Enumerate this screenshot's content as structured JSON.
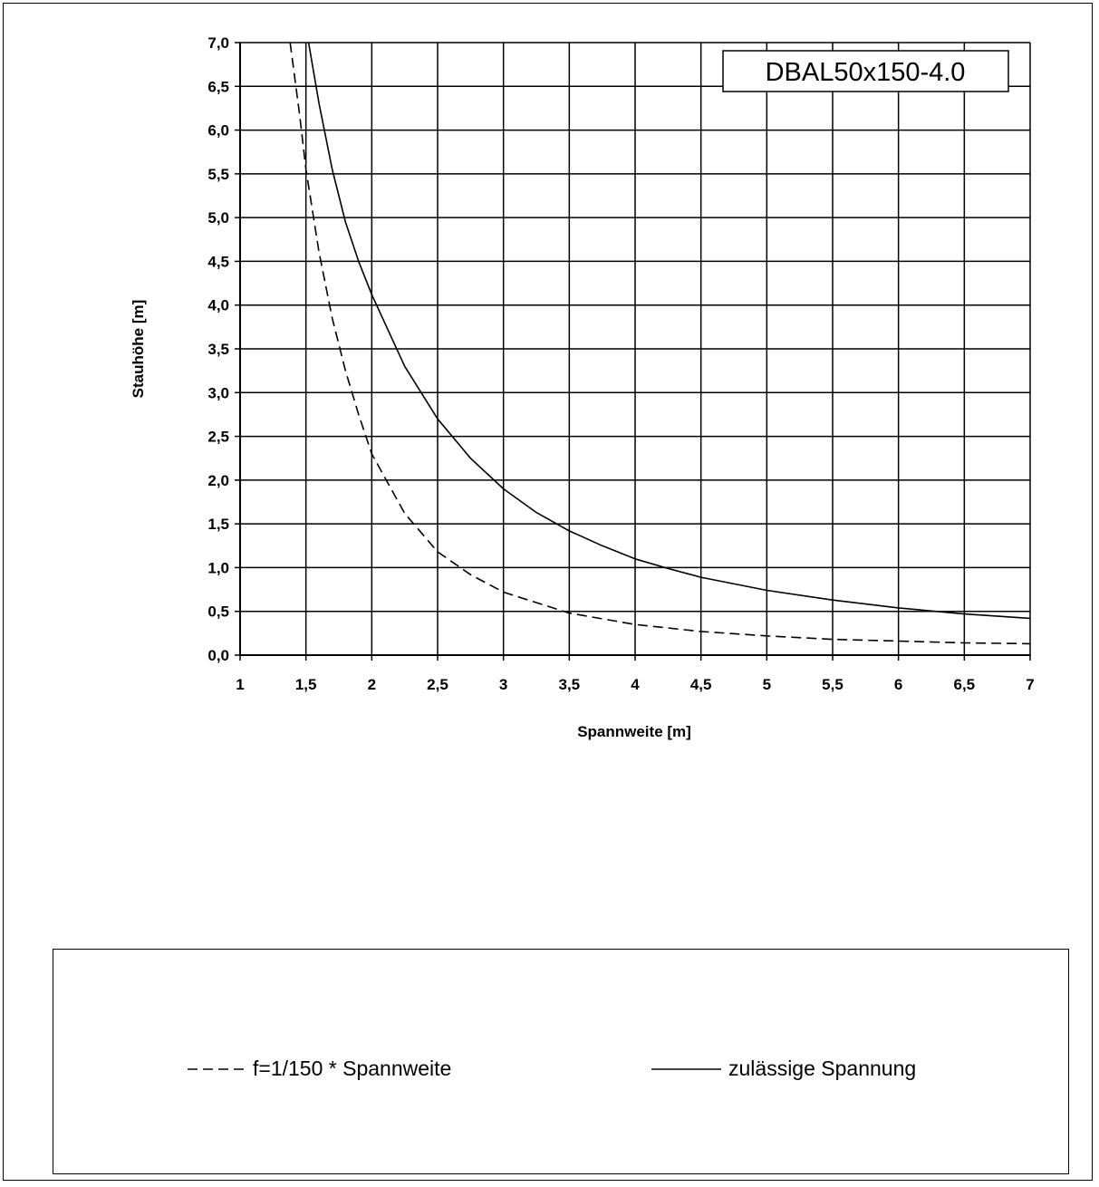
{
  "chart_data": {
    "type": "line",
    "title": "DBAL50x150-4.0",
    "xlabel": "Spannweite [m]",
    "ylabel": "Stauhöhe [m]",
    "xlim": [
      1,
      7
    ],
    "ylim": [
      0,
      7
    ],
    "x_ticks": [
      "1",
      "1,5",
      "2",
      "2,5",
      "3",
      "3,5",
      "4",
      "4,5",
      "5",
      "5,5",
      "6",
      "6,5",
      "7"
    ],
    "y_ticks": [
      "0,0",
      "0,5",
      "1,0",
      "1,5",
      "2,0",
      "2,5",
      "3,0",
      "3,5",
      "4,0",
      "4,5",
      "5,0",
      "5,5",
      "6,0",
      "6,5",
      "7,0"
    ],
    "grid": true,
    "legend_position": "bottom",
    "series": [
      {
        "name": "f=1/150 * Spannweite",
        "style": "dashed",
        "color": "#000000",
        "x": [
          1.38,
          1.45,
          1.5,
          1.6,
          1.7,
          1.8,
          1.9,
          2.0,
          2.25,
          2.5,
          2.75,
          3.0,
          3.5,
          4.0,
          4.5,
          5.0,
          5.5,
          6.0,
          6.5,
          7.0
        ],
        "y": [
          7.0,
          6.2,
          5.55,
          4.6,
          3.85,
          3.25,
          2.75,
          2.3,
          1.62,
          1.18,
          0.92,
          0.72,
          0.48,
          0.35,
          0.27,
          0.22,
          0.18,
          0.16,
          0.14,
          0.13
        ]
      },
      {
        "name": "zulässige Spannung",
        "style": "solid",
        "color": "#000000",
        "x": [
          1.52,
          1.6,
          1.7,
          1.8,
          1.9,
          2.0,
          2.25,
          2.5,
          2.75,
          3.0,
          3.25,
          3.5,
          3.75,
          4.0,
          4.25,
          4.5,
          5.0,
          5.5,
          6.0,
          6.5,
          7.0
        ],
        "y": [
          7.0,
          6.3,
          5.55,
          4.95,
          4.5,
          4.12,
          3.3,
          2.7,
          2.25,
          1.9,
          1.63,
          1.42,
          1.25,
          1.1,
          0.99,
          0.89,
          0.74,
          0.63,
          0.54,
          0.47,
          0.42
        ]
      }
    ]
  }
}
